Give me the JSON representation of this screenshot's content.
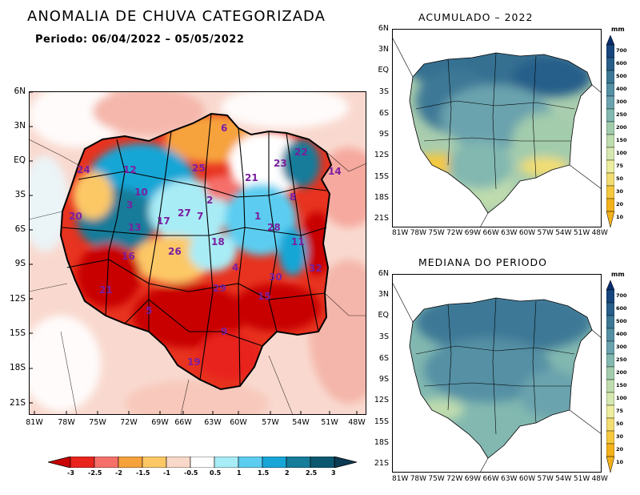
{
  "title": "ANOMALIA DE CHUVA CATEGORIZADA",
  "period": "Periodo: 06/04/2022 – 05/05/2022",
  "maps": {
    "anomaly": {
      "lat_labels": [
        "6N",
        "3N",
        "EQ",
        "3S",
        "6S",
        "9S",
        "12S",
        "15S",
        "18S",
        "21S"
      ],
      "lon_labels": [
        "81W",
        "78W",
        "75W",
        "72W",
        "69W",
        "66W",
        "63W",
        "60W",
        "57W",
        "54W",
        "51W",
        "48W"
      ],
      "basin_numbers": [
        "6",
        "22",
        "24",
        "12",
        "25",
        "21",
        "23",
        "14",
        "10",
        "2",
        "8",
        "20",
        "3",
        "17",
        "27",
        "7",
        "1",
        "13",
        "28",
        "11",
        "18",
        "26",
        "16",
        "4",
        "32",
        "30",
        "21",
        "5",
        "29",
        "15",
        "9",
        "19"
      ],
      "colorbar_labels": [
        "-3",
        "-2.5",
        "-2",
        "-1.5",
        "-1",
        "-0.5",
        "0.5",
        "1",
        "1.5",
        "2",
        "2.5",
        "3"
      ],
      "colorbar_colors": [
        "#c80000",
        "#e8241c",
        "#f6706a",
        "#f6a23c",
        "#fcc866",
        "#f8d8c8",
        "#ffffff",
        "#a8ecf6",
        "#5ccdf0",
        "#18a6d6",
        "#157c9a",
        "#0c5870"
      ]
    },
    "accumulated": {
      "title": "ACUMULADO – 2022",
      "lat_labels": [
        "6N",
        "3N",
        "EQ",
        "3S",
        "6S",
        "9S",
        "12S",
        "15S",
        "18S",
        "21S"
      ],
      "lon_labels": [
        "81W",
        "78W",
        "75W",
        "72W",
        "69W",
        "66W",
        "63W",
        "60W",
        "57W",
        "54W",
        "51W",
        "48W"
      ]
    },
    "median": {
      "title": "MEDIANA DO PERIODO",
      "lat_labels": [
        "6N",
        "3N",
        "EQ",
        "3S",
        "6S",
        "9S",
        "12S",
        "15S",
        "18S",
        "21S"
      ],
      "lon_labels": [
        "81W",
        "78W",
        "75W",
        "72W",
        "69W",
        "66W",
        "63W",
        "60W",
        "57W",
        "54W",
        "51W",
        "48W"
      ]
    },
    "mm_colorbar": {
      "unit": "mm",
      "labels": [
        "700",
        "600",
        "500",
        "400",
        "300",
        "250",
        "200",
        "150",
        "100",
        "75",
        "50",
        "30",
        "20",
        "10"
      ],
      "colors": [
        "#0a2d6e",
        "#17467e",
        "#275e8a",
        "#3c7896",
        "#5590a4",
        "#6aa3ae",
        "#82b8b0",
        "#a2ccac",
        "#bfdcae",
        "#d6e8b0",
        "#ecee9e",
        "#f2dd72",
        "#f5c83e",
        "#f3b21c"
      ]
    }
  }
}
